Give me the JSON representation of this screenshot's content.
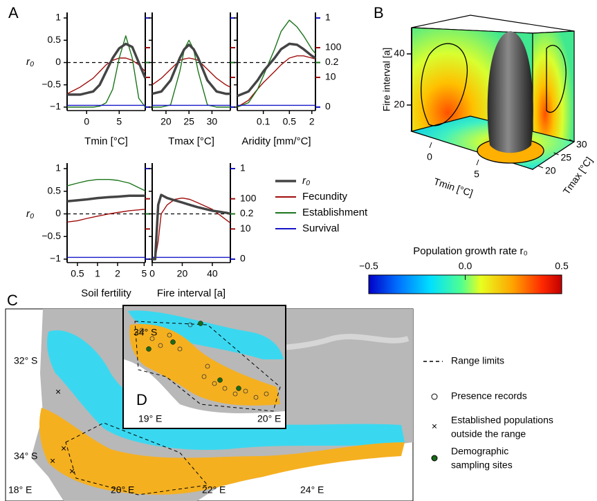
{
  "panel_labels": [
    "A",
    "B",
    "C",
    "D"
  ],
  "ylabel": "r₀",
  "variables": [
    {
      "name": "r₀",
      "color": "#444444",
      "ylim": [
        -1,
        1
      ],
      "yticks": [
        1,
        0.5,
        0,
        {
          "value": -0.5,
          "label": "−0.5"
        },
        {
          "value": -1,
          "label": "−1"
        }
      ],
      "ref_line": 0
    },
    {
      "name": "Fecundity",
      "color": "#a00c0c",
      "ylim": [
        1,
        1000
      ],
      "log": true,
      "yticks": [
        100,
        10
      ]
    },
    {
      "name": "Establishment",
      "color": "#1a741a",
      "ylim": [
        0,
        0.4
      ],
      "yticks": [
        0.2
      ]
    },
    {
      "name": "Survival",
      "color": "#1414c8",
      "ylim": [
        0,
        1
      ],
      "yticks": [
        1,
        0
      ]
    }
  ],
  "chart_data": [
    {
      "type": "line",
      "xlabel": "Tmin [°C]",
      "xlim": [
        -3,
        9
      ],
      "xticks": [
        0,
        5
      ],
      "left_labels": true,
      "right_labels": false,
      "x": [
        -3,
        -1,
        1,
        2,
        3,
        4,
        5,
        6,
        7,
        8,
        9
      ],
      "series": [
        {
          "variable": 0,
          "values": [
            -0.72,
            -0.72,
            -0.65,
            -0.5,
            -0.2,
            0.1,
            0.32,
            0.42,
            0.35,
            0.0,
            -0.35
          ]
        },
        {
          "variable": 1,
          "values": [
            2.8,
            4.7,
            9.4,
            15.8,
            26.6,
            37.6,
            44.7,
            44.7,
            37.6,
            26.6,
            15.8
          ]
        },
        {
          "variable": 2,
          "values": [
            0,
            0,
            0,
            0.004,
            0.02,
            0.08,
            0.22,
            0.32,
            0.22,
            0.04,
            0
          ]
        },
        {
          "variable": 3,
          "values": [
            0.02,
            0.02,
            0.02,
            0.02,
            0.02,
            0.02,
            0.02,
            0.02,
            0.02,
            0.02,
            0.02
          ]
        }
      ]
    },
    {
      "type": "line",
      "xlabel": "Tmax [°C]",
      "xlim": [
        17,
        34
      ],
      "xticks": [
        20,
        25,
        30
      ],
      "left_labels": false,
      "right_labels": false,
      "x": [
        17,
        19,
        21,
        23,
        24,
        25,
        26,
        27,
        29,
        31,
        33,
        34
      ],
      "series": [
        {
          "variable": 0,
          "values": [
            -0.7,
            -0.65,
            -0.4,
            0.1,
            0.3,
            0.4,
            0.3,
            0.1,
            -0.4,
            -0.65,
            -0.7,
            -0.7
          ]
        },
        {
          "variable": 1,
          "values": [
            5.6,
            9.4,
            18.8,
            37.6,
            41.7,
            44.7,
            41.7,
            37.6,
            18.8,
            9.4,
            5.6,
            4.7
          ]
        },
        {
          "variable": 2,
          "values": [
            0,
            0,
            0.01,
            0.16,
            0.26,
            0.3,
            0.26,
            0.16,
            0.01,
            0,
            0,
            0
          ]
        },
        {
          "variable": 3,
          "values": [
            0.02,
            0.02,
            0.02,
            0.02,
            0.02,
            0.02,
            0.02,
            0.02,
            0.02,
            0.02,
            0.02,
            0.02
          ]
        }
      ]
    },
    {
      "type": "line",
      "xlabel": "Aridity [mm/°C]",
      "xlim": [
        0.02,
        2.5
      ],
      "xlog": true,
      "xticks": [
        0.1,
        0.5,
        2
      ],
      "left_labels": false,
      "right_labels": true,
      "x": [
        0.02,
        0.04,
        0.07,
        0.1,
        0.2,
        0.3,
        0.5,
        0.8,
        1.2,
        2,
        2.5
      ],
      "series": [
        {
          "variable": 0,
          "values": [
            -0.75,
            -0.65,
            -0.4,
            -0.2,
            0.1,
            0.3,
            0.42,
            0.4,
            0.3,
            0.15,
            0.1
          ]
        },
        {
          "variable": 1,
          "values": [
            1,
            1.7,
            4.0,
            6.7,
            15.8,
            26.6,
            44.7,
            53.1,
            53.1,
            44.7,
            41.7
          ]
        },
        {
          "variable": 2,
          "values": [
            0,
            0.02,
            0.08,
            0.14,
            0.26,
            0.34,
            0.39,
            0.36,
            0.32,
            0.26,
            0.24
          ]
        },
        {
          "variable": 3,
          "values": [
            0.02,
            0.02,
            0.02,
            0.02,
            0.02,
            0.02,
            0.02,
            0.02,
            0.02,
            0.02,
            0.02
          ]
        }
      ]
    },
    {
      "type": "line",
      "xlabel": "Soil fertility",
      "xlim": [
        0.35,
        5.2
      ],
      "xlog": true,
      "xticks": [
        0.5,
        1,
        2,
        5
      ],
      "left_labels": true,
      "right_labels": false,
      "x": [
        0.35,
        0.5,
        0.7,
        1,
        1.5,
        2,
        3,
        5,
        5.2
      ],
      "series": [
        {
          "variable": 0,
          "values": [
            0.28,
            0.3,
            0.32,
            0.35,
            0.37,
            0.38,
            0.4,
            0.4,
            0.4
          ]
        },
        {
          "variable": 1,
          "values": [
            17,
            18.8,
            22.4,
            26.6,
            31.6,
            35.1,
            40.3,
            44.7,
            44.7
          ]
        },
        {
          "variable": 2,
          "values": [
            0.324,
            0.336,
            0.346,
            0.352,
            0.352,
            0.348,
            0.336,
            0.304,
            0.3
          ]
        },
        {
          "variable": 3,
          "values": [
            0.02,
            0.02,
            0.02,
            0.02,
            0.02,
            0.02,
            0.02,
            0.02,
            0.02
          ]
        }
      ]
    },
    {
      "type": "line",
      "xlabel": "Fire interval [a]",
      "xlim": [
        0,
        52
      ],
      "xticks": [
        0,
        20,
        40
      ],
      "left_labels": false,
      "right_labels": true,
      "x": [
        0,
        2,
        4,
        6,
        10,
        15,
        20,
        25,
        30,
        40,
        50,
        52
      ],
      "series": [
        {
          "variable": 0,
          "values": [
            -1,
            -1,
            0.2,
            0.42,
            0.35,
            0.3,
            0.25,
            0.2,
            0.15,
            0.07,
            0.02,
            0.0
          ]
        },
        {
          "variable": 1,
          "values": [
            1,
            1,
            4.0,
            31.6,
            63.1,
            95.5,
            105.9,
            95.5,
            75,
            44.7,
            18.8,
            15.8
          ]
        },
        {
          "variable": 3,
          "values": [
            0.02,
            0.02,
            0.02,
            0.02,
            0.02,
            0.02,
            0.02,
            0.02,
            0.02,
            0.02,
            0.02,
            0.02
          ]
        }
      ]
    }
  ],
  "panel_b": {
    "zlabel": "Fire interval [a]",
    "zticks": [
      20,
      40
    ],
    "xlabel": "Tmin [°C]",
    "xticks": [
      0,
      5
    ],
    "ylabel": "Tmax [°C]",
    "yticks": [
      20,
      25,
      30
    ]
  },
  "colorbar": {
    "title": "Population growth rate r₀",
    "lim": [
      -0.5,
      0.5
    ],
    "ticks": [
      {
        "value": -0.5,
        "label": "−0.5"
      },
      {
        "value": 0,
        "label": "0.0"
      },
      0.5
    ]
  },
  "map": {
    "lat_labels": [
      "32° S",
      "34° S"
    ],
    "lon_labels": [
      "18° E",
      "20° E",
      "22° E",
      "24° E"
    ],
    "inset": {
      "lat_labels": [
        "34° S"
      ],
      "lon_labels": [
        "19° E",
        "20° E"
      ]
    },
    "legend": [
      "Range limits",
      "Presence records",
      [
        "Established populations",
        "outside the range"
      ],
      [
        "Demographic",
        "sampling sites"
      ]
    ]
  }
}
